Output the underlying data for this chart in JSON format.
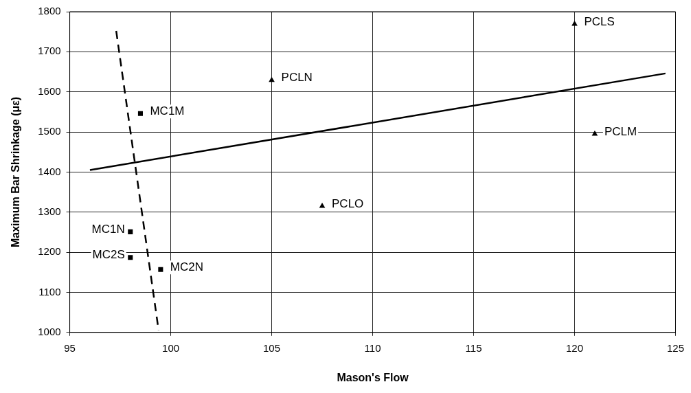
{
  "chart_data": {
    "type": "scatter",
    "xlabel": "Mason's Flow",
    "ylabel": "Maximum Bar Shrinkage (με)",
    "xlim": [
      95,
      125
    ],
    "xticks": [
      95,
      100,
      105,
      110,
      115,
      120,
      125
    ],
    "ylim": [
      1000,
      1800
    ],
    "yticks": [
      1000,
      1100,
      1200,
      1300,
      1400,
      1500,
      1600,
      1700,
      1800
    ],
    "grid": true,
    "legend": false,
    "series": [
      {
        "type": "scatter",
        "marker": "square",
        "color": "#000000",
        "x": [
          98.5,
          98.0,
          98.0,
          99.5
        ],
        "values": [
          1546,
          1251,
          1187,
          1157
        ]
      },
      {
        "type": "scatter",
        "marker": "triangle",
        "color": "#000000",
        "x": [
          105,
          107.5,
          120,
          121
        ],
        "values": [
          1629,
          1315,
          1769,
          1495
        ]
      },
      {
        "type": "line",
        "line_style": "solid",
        "marker": "none",
        "color": "#000000",
        "x": [
          96,
          124.5
        ],
        "values": [
          1405,
          1646
        ]
      },
      {
        "type": "line",
        "line_style": "dashed",
        "marker": "none",
        "color": "#000000",
        "x": [
          97.3,
          99.4
        ],
        "values": [
          1752,
          1005
        ]
      }
    ],
    "annotations": [
      {
        "text": "MC1M",
        "x": 98.5,
        "y": 1546
      },
      {
        "text": "MC1N",
        "x": 98.0,
        "y": 1251
      },
      {
        "text": "MC2S",
        "x": 98.0,
        "y": 1187
      },
      {
        "text": "MC2N",
        "x": 99.5,
        "y": 1157
      },
      {
        "text": "PCLN",
        "x": 105,
        "y": 1629
      },
      {
        "text": "PCLO",
        "x": 107.5,
        "y": 1315
      },
      {
        "text": "PCLS",
        "x": 120,
        "y": 1769
      },
      {
        "text": "PCLM",
        "x": 121,
        "y": 1495
      }
    ]
  }
}
